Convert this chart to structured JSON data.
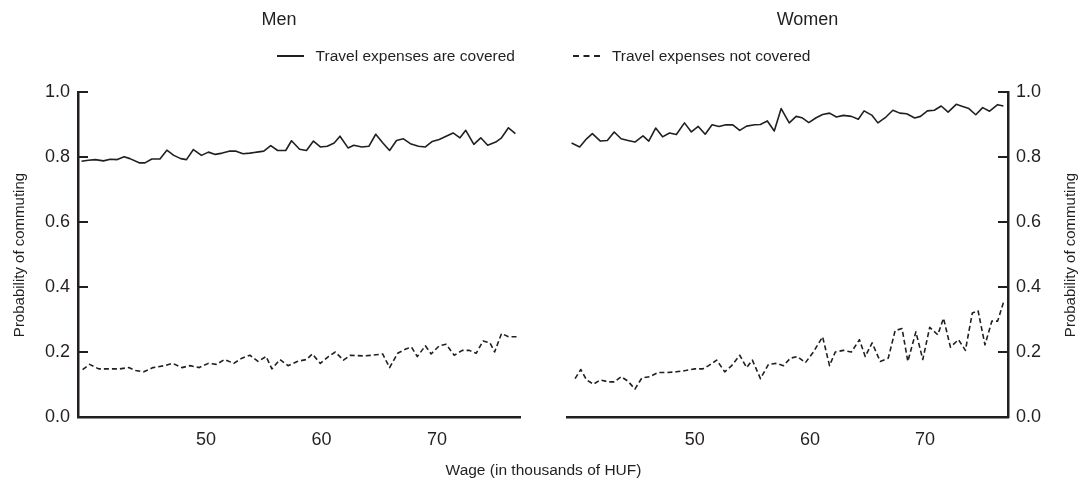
{
  "chart_data": [
    {
      "type": "line",
      "title": "Men",
      "xlabel": "Wage (in thousands of HUF)",
      "ylabel": "Probability of commuting",
      "legend": "top",
      "x": [
        39.2,
        39.8,
        40.4,
        41.1,
        41.7,
        42.3,
        42.9,
        43.4,
        44.2,
        44.7,
        45.3,
        46.0,
        46.6,
        47.2,
        47.8,
        48.3,
        48.9,
        49.6,
        50.2,
        50.8,
        51.4,
        52.0,
        52.6,
        53.2,
        53.8,
        54.4,
        55.0,
        55.6,
        56.2,
        56.9,
        57.4,
        58.1,
        58.7,
        59.3,
        59.9,
        60.5,
        61.1,
        61.6,
        62.3,
        62.8,
        63.5,
        64.1,
        64.7,
        65.3,
        65.9,
        66.5,
        67.1,
        67.7,
        68.4,
        69.0,
        69.6,
        70.2,
        70.8,
        71.4,
        72.0,
        72.5,
        73.2,
        73.8,
        74.4,
        75.1,
        75.6,
        76.2,
        76.8
      ],
      "series": [
        {
          "name": "Travel expenses are covered",
          "color": "#231f20",
          "line_style": "solid",
          "values": [
            0.787,
            0.79,
            0.792,
            0.788,
            0.793,
            0.792,
            0.801,
            0.795,
            0.782,
            0.782,
            0.794,
            0.794,
            0.821,
            0.805,
            0.795,
            0.792,
            0.823,
            0.805,
            0.815,
            0.808,
            0.812,
            0.818,
            0.818,
            0.81,
            0.812,
            0.815,
            0.818,
            0.835,
            0.82,
            0.82,
            0.85,
            0.824,
            0.82,
            0.849,
            0.831,
            0.833,
            0.843,
            0.864,
            0.828,
            0.836,
            0.831,
            0.833,
            0.87,
            0.844,
            0.82,
            0.851,
            0.856,
            0.841,
            0.833,
            0.831,
            0.848,
            0.854,
            0.864,
            0.874,
            0.859,
            0.882,
            0.839,
            0.859,
            0.836,
            0.846,
            0.859,
            0.89,
            0.872
          ]
        },
        {
          "name": "Travel expenses not covered",
          "color": "#231f20",
          "line_style": "dashed",
          "x": [
            39.3,
            39.9,
            40.7,
            41.7,
            42.5,
            43.3,
            43.9,
            44.6,
            45.4,
            46.4,
            47.1,
            47.9,
            48.6,
            49.4,
            50.2,
            50.9,
            51.6,
            52.4,
            53.1,
            53.8,
            54.5,
            55.2,
            55.7,
            56.4,
            57.1,
            57.9,
            58.7,
            59.2,
            59.9,
            60.6,
            61.2,
            61.9,
            62.5,
            63.6,
            64.4,
            65.3,
            65.9,
            66.6,
            67.3,
            67.8,
            68.3,
            69.0,
            69.5,
            70.2,
            70.8,
            71.5,
            72.2,
            72.8,
            73.4,
            74.0,
            74.6,
            75.0,
            75.6,
            76.2,
            76.9
          ],
          "values": [
            0.146,
            0.162,
            0.148,
            0.148,
            0.148,
            0.152,
            0.143,
            0.139,
            0.152,
            0.158,
            0.165,
            0.152,
            0.158,
            0.152,
            0.165,
            0.162,
            0.177,
            0.165,
            0.181,
            0.19,
            0.171,
            0.186,
            0.148,
            0.177,
            0.158,
            0.171,
            0.177,
            0.194,
            0.165,
            0.186,
            0.2,
            0.175,
            0.19,
            0.188,
            0.19,
            0.194,
            0.152,
            0.196,
            0.209,
            0.215,
            0.186,
            0.219,
            0.194,
            0.219,
            0.224,
            0.19,
            0.205,
            0.205,
            0.196,
            0.234,
            0.228,
            0.2,
            0.257,
            0.247,
            0.247
          ]
        }
      ],
      "xlim": [
        38.9,
        77.2
      ],
      "xticks": [
        50,
        60,
        70
      ],
      "ylim": [
        0,
        1
      ],
      "yticks": [
        {
          "value": 0,
          "label": "0.0"
        },
        0.2,
        0.4,
        0.6,
        0.8,
        {
          "value": 1,
          "label": "1.0"
        }
      ]
    },
    {
      "type": "line",
      "title": "Women",
      "y2label": "Probability of commuting",
      "x": [
        39.3,
        40.0,
        40.6,
        41.1,
        41.8,
        42.4,
        43.0,
        43.6,
        44.2,
        44.8,
        45.5,
        46.0,
        46.6,
        47.2,
        47.8,
        48.4,
        49.1,
        49.7,
        50.3,
        50.9,
        51.5,
        52.1,
        52.7,
        53.3,
        53.9,
        54.5,
        55.2,
        55.7,
        56.3,
        56.9,
        57.5,
        58.2,
        58.8,
        59.3,
        59.9,
        60.5,
        61.1,
        61.7,
        62.3,
        62.9,
        63.6,
        64.2,
        64.7,
        65.4,
        65.9,
        66.6,
        67.2,
        67.8,
        68.4,
        69.1,
        69.6,
        70.2,
        70.8,
        71.4,
        72.0,
        72.7,
        73.2,
        73.8,
        74.4,
        75.0,
        75.6,
        76.3,
        76.8
      ],
      "series": [
        {
          "name": "Travel expenses are covered",
          "color": "#231f20",
          "line_style": "solid",
          "axis": "y2",
          "values": [
            0.843,
            0.831,
            0.856,
            0.872,
            0.849,
            0.851,
            0.877,
            0.856,
            0.851,
            0.846,
            0.865,
            0.849,
            0.889,
            0.862,
            0.874,
            0.869,
            0.905,
            0.877,
            0.894,
            0.87,
            0.899,
            0.894,
            0.899,
            0.899,
            0.882,
            0.895,
            0.899,
            0.9,
            0.911,
            0.88,
            0.949,
            0.905,
            0.925,
            0.921,
            0.906,
            0.92,
            0.931,
            0.935,
            0.923,
            0.928,
            0.925,
            0.916,
            0.942,
            0.928,
            0.905,
            0.923,
            0.944,
            0.935,
            0.933,
            0.92,
            0.925,
            0.942,
            0.944,
            0.957,
            0.938,
            0.962,
            0.956,
            0.949,
            0.93,
            0.952,
            0.941,
            0.961,
            0.957
          ]
        },
        {
          "name": "Travel expenses not covered",
          "color": "#231f20",
          "line_style": "dashed",
          "axis": "y2",
          "x": [
            39.6,
            40.1,
            40.6,
            41.2,
            41.8,
            42.5,
            43.0,
            43.6,
            44.2,
            44.8,
            45.4,
            46.1,
            46.8,
            47.6,
            48.4,
            49.2,
            50.0,
            50.7,
            51.2,
            51.9,
            52.6,
            53.2,
            53.9,
            54.5,
            55.0,
            55.7,
            56.4,
            57.1,
            57.7,
            58.3,
            58.9,
            59.6,
            60.3,
            61.1,
            61.7,
            62.2,
            62.9,
            63.6,
            64.3,
            64.8,
            65.4,
            66.1,
            66.8,
            67.4,
            68.0,
            68.5,
            69.2,
            69.8,
            70.4,
            71.1,
            71.6,
            72.2,
            72.9,
            73.5,
            74.1,
            74.6,
            75.2,
            75.8,
            76.3,
            76.8
          ],
          "values": [
            0.118,
            0.146,
            0.114,
            0.101,
            0.114,
            0.108,
            0.108,
            0.124,
            0.11,
            0.086,
            0.12,
            0.124,
            0.137,
            0.137,
            0.139,
            0.143,
            0.148,
            0.148,
            0.158,
            0.175,
            0.139,
            0.158,
            0.19,
            0.152,
            0.175,
            0.118,
            0.162,
            0.165,
            0.158,
            0.181,
            0.186,
            0.167,
            0.2,
            0.247,
            0.158,
            0.2,
            0.205,
            0.2,
            0.238,
            0.186,
            0.228,
            0.171,
            0.181,
            0.266,
            0.272,
            0.171,
            0.262,
            0.177,
            0.276,
            0.253,
            0.304,
            0.215,
            0.238,
            0.205,
            0.32,
            0.327,
            0.222,
            0.295,
            0.295,
            0.352
          ]
        }
      ],
      "xlim": [
        38.9,
        77.2
      ],
      "xticks": [
        50,
        60,
        70
      ],
      "y2lim": [
        0,
        1
      ],
      "y2ticks": [
        {
          "value": 0,
          "label": "0.0"
        },
        0.2,
        0.4,
        0.6,
        0.8,
        {
          "value": 1,
          "label": "1.0"
        }
      ]
    }
  ]
}
